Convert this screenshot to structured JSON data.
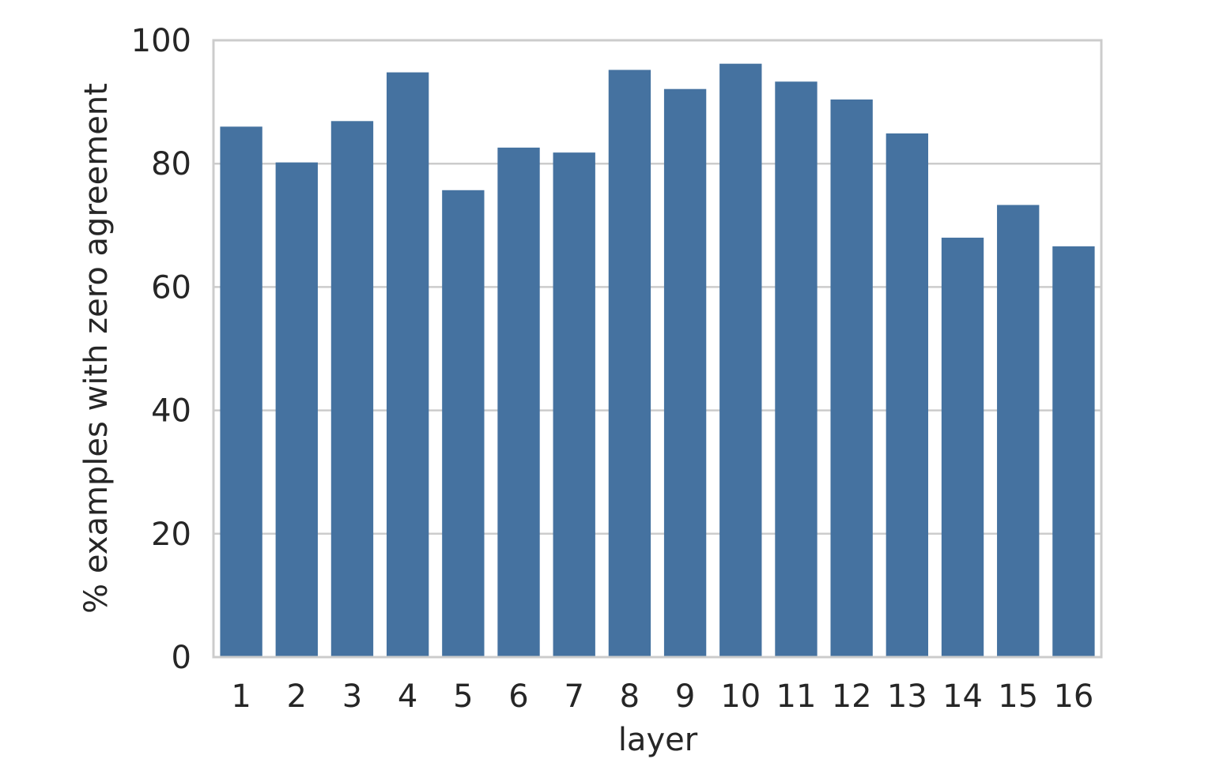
{
  "chart_data": {
    "type": "bar",
    "title": "",
    "xlabel": "layer",
    "ylabel": "% examples with zero agreement",
    "categories": [
      "1",
      "2",
      "3",
      "4",
      "5",
      "6",
      "7",
      "8",
      "9",
      "10",
      "11",
      "12",
      "13",
      "14",
      "15",
      "16"
    ],
    "values": [
      86.0,
      80.2,
      86.9,
      94.8,
      75.7,
      82.6,
      81.8,
      95.2,
      92.1,
      96.2,
      93.3,
      90.4,
      84.9,
      68.0,
      73.3,
      66.6
    ],
    "ylim": [
      0,
      100
    ],
    "yticks": [
      0,
      20,
      40,
      60,
      80,
      100
    ],
    "grid": "horizontal",
    "legend": "none",
    "colors": {
      "bar": "#4572a0",
      "grid": "#cccccc",
      "spine": "#cccccc",
      "text": "#262626"
    }
  }
}
